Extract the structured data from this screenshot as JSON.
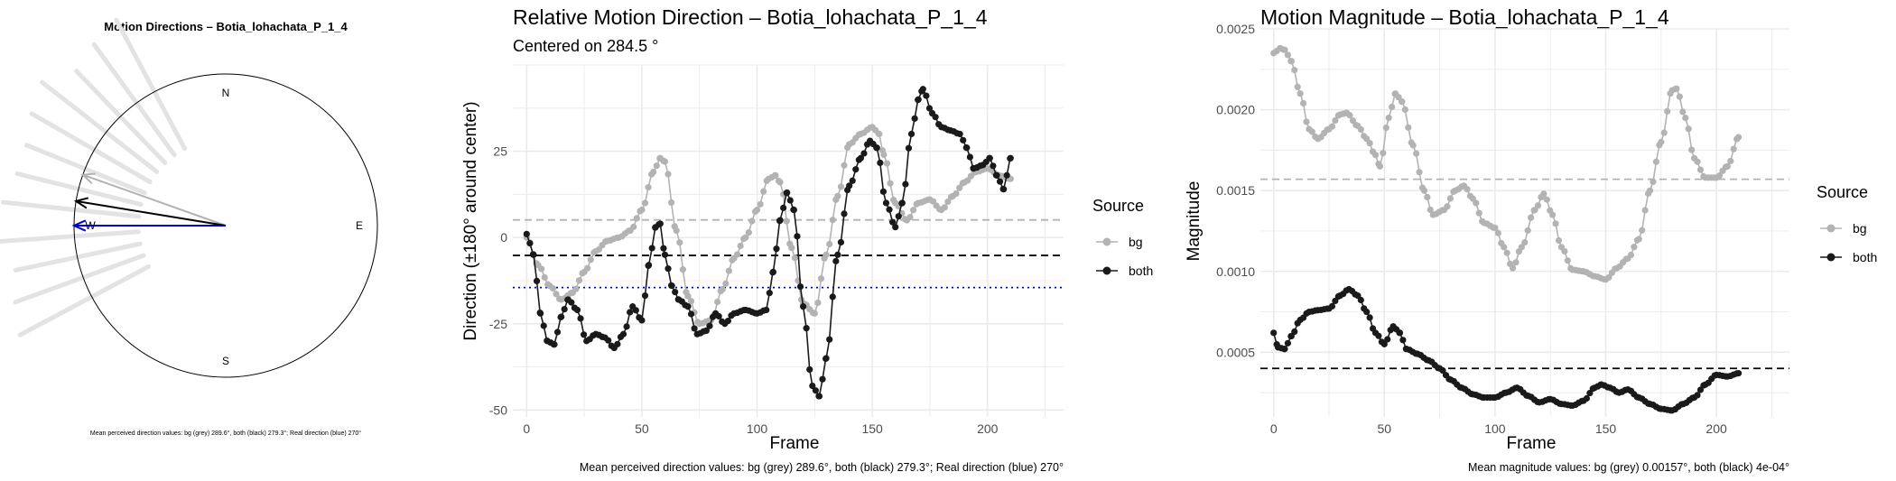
{
  "panels": {
    "compass": {
      "title": "Motion Directions – Botia_lohachata_P_1_4",
      "labels": {
        "n": "N",
        "e": "E",
        "s": "S",
        "w": "W"
      },
      "caption": "Mean perceived direction values: bg (grey) 289.6°, both (black) 279.3°; Real direction (blue) 270°"
    },
    "relative": {
      "title": "Relative Motion Direction – Botia_lohachata_P_1_4",
      "subtitle": "Centered on  284.5 °",
      "caption": "Mean perceived direction values: bg (grey) 289.6°, both (black) 279.3°; Real direction (blue) 270°"
    },
    "magnitude": {
      "title": "Motion Magnitude – Botia_lohachata_P_1_4",
      "caption": "Mean magnitude values: bg (grey) 0.00157°, both (black) 4e-04°"
    }
  },
  "colors": {
    "bg": "#b3b3b3",
    "both": "#1a1a1a",
    "real": "#0000cc",
    "grid": "#ebebeb"
  },
  "chart_data": [
    {
      "type": "polar",
      "title": "Motion Directions – Botia_lohachata_P_1_4",
      "directions": [
        {
          "name": "bg",
          "angle_deg": 289.6,
          "color": "#b3b3b3"
        },
        {
          "name": "both",
          "angle_deg": 279.3,
          "color": "#000000"
        },
        {
          "name": "real",
          "angle_deg": 270,
          "color": "#0000cc"
        }
      ]
    },
    {
      "type": "line",
      "title": "Relative Motion Direction – Botia_lohachata_P_1_4",
      "xlabel": "Frame",
      "ylabel": "Direction (±180° around center)",
      "xlim": [
        -6,
        233
      ],
      "ylim": [
        -52,
        50
      ],
      "xticks": [
        0,
        50,
        100,
        150,
        200
      ],
      "yticks": [
        -50,
        -25,
        0,
        25
      ],
      "legend_title": "Source",
      "legend_position": "right",
      "hlines": [
        {
          "name": "bg",
          "y": 5.1,
          "style": "dashed",
          "color": "#b3b3b3"
        },
        {
          "name": "both",
          "y": -5.2,
          "style": "dashed",
          "color": "#000000"
        },
        {
          "name": "real",
          "y": -14.5,
          "style": "dotted",
          "color": "#0000cc"
        }
      ],
      "series": [
        {
          "name": "bg",
          "color": "#b3b3b3",
          "points": [
            [
              0,
              0
            ],
            [
              5,
              -8
            ],
            [
              10,
              -14
            ],
            [
              15,
              -18
            ],
            [
              20,
              -16
            ],
            [
              25,
              -10
            ],
            [
              30,
              -4
            ],
            [
              35,
              -1
            ],
            [
              40,
              0
            ],
            [
              45,
              2
            ],
            [
              50,
              8
            ],
            [
              55,
              19
            ],
            [
              58,
              23
            ],
            [
              60,
              22
            ],
            [
              65,
              2
            ],
            [
              70,
              -17
            ],
            [
              75,
              -25
            ],
            [
              80,
              -24
            ],
            [
              85,
              -15
            ],
            [
              90,
              -6
            ],
            [
              95,
              0
            ],
            [
              100,
              8
            ],
            [
              105,
              17
            ],
            [
              108,
              18
            ],
            [
              110,
              16
            ],
            [
              115,
              -3
            ],
            [
              120,
              -19
            ],
            [
              125,
              -22
            ],
            [
              130,
              -5
            ],
            [
              135,
              12
            ],
            [
              140,
              27
            ],
            [
              145,
              30
            ],
            [
              150,
              32
            ],
            [
              153,
              30
            ],
            [
              155,
              24
            ],
            [
              160,
              10
            ],
            [
              165,
              5
            ],
            [
              170,
              10
            ],
            [
              175,
              11
            ],
            [
              180,
              8
            ],
            [
              185,
              12
            ],
            [
              190,
              16
            ],
            [
              195,
              19
            ],
            [
              200,
              20
            ],
            [
              205,
              18
            ],
            [
              210,
              17
            ]
          ]
        },
        {
          "name": "both",
          "color": "#1a1a1a",
          "points": [
            [
              0,
              1
            ],
            [
              3,
              -5
            ],
            [
              6,
              -22
            ],
            [
              9,
              -30
            ],
            [
              12,
              -31
            ],
            [
              15,
              -23
            ],
            [
              18,
              -18
            ],
            [
              22,
              -21
            ],
            [
              26,
              -30
            ],
            [
              30,
              -28
            ],
            [
              34,
              -29
            ],
            [
              38,
              -32
            ],
            [
              42,
              -28
            ],
            [
              46,
              -20
            ],
            [
              50,
              -24
            ],
            [
              53,
              -8
            ],
            [
              56,
              3
            ],
            [
              58,
              4
            ],
            [
              60,
              -5
            ],
            [
              63,
              -14
            ],
            [
              66,
              -18
            ],
            [
              70,
              -20
            ],
            [
              74,
              -28
            ],
            [
              78,
              -27
            ],
            [
              82,
              -22
            ],
            [
              86,
              -25
            ],
            [
              90,
              -22
            ],
            [
              95,
              -21
            ],
            [
              100,
              -22
            ],
            [
              104,
              -21
            ],
            [
              107,
              -10
            ],
            [
              110,
              5
            ],
            [
              113,
              13
            ],
            [
              116,
              8
            ],
            [
              120,
              -20
            ],
            [
              124,
              -43
            ],
            [
              127,
              -46
            ],
            [
              130,
              -35
            ],
            [
              135,
              -5
            ],
            [
              140,
              15
            ],
            [
              145,
              23
            ],
            [
              149,
              28
            ],
            [
              152,
              26
            ],
            [
              156,
              10
            ],
            [
              160,
              3
            ],
            [
              163,
              10
            ],
            [
              167,
              30
            ],
            [
              170,
              40
            ],
            [
              172,
              43
            ],
            [
              176,
              36
            ],
            [
              180,
              32
            ],
            [
              184,
              31
            ],
            [
              188,
              30
            ],
            [
              191,
              26
            ],
            [
              194,
              20
            ],
            [
              198,
              21
            ],
            [
              201,
              23
            ],
            [
              204,
              18
            ],
            [
              207,
              14
            ],
            [
              210,
              23
            ]
          ]
        }
      ]
    },
    {
      "type": "line",
      "title": "Motion Magnitude – Botia_lohachata_P_1_4",
      "xlabel": "Frame",
      "ylabel": "Magnitude",
      "xlim": [
        -6,
        233
      ],
      "ylim": [
        0.0001,
        0.0025
      ],
      "xticks": [
        0,
        50,
        100,
        150,
        200
      ],
      "yticks": [
        0.0005,
        0.001,
        0.0015,
        0.002,
        0.0025
      ],
      "ytick_labels": [
        "0.0005",
        "0.0010",
        "0.0015",
        "0.0020",
        "0.0025"
      ],
      "legend_title": "Source",
      "legend_position": "right",
      "hlines": [
        {
          "name": "bg",
          "y": 0.00157,
          "style": "dashed",
          "color": "#b3b3b3"
        },
        {
          "name": "both",
          "y": 0.0004,
          "style": "dashed",
          "color": "#000000"
        }
      ],
      "series": [
        {
          "name": "bg",
          "color": "#b3b3b3",
          "points": [
            [
              0,
              0.00235
            ],
            [
              3,
              0.00238
            ],
            [
              5,
              0.00237
            ],
            [
              8,
              0.0023
            ],
            [
              12,
              0.0021
            ],
            [
              16,
              0.00188
            ],
            [
              20,
              0.00182
            ],
            [
              25,
              0.00188
            ],
            [
              30,
              0.00197
            ],
            [
              33,
              0.00198
            ],
            [
              38,
              0.0019
            ],
            [
              42,
              0.00182
            ],
            [
              46,
              0.00172
            ],
            [
              48,
              0.00165
            ],
            [
              52,
              0.00195
            ],
            [
              55,
              0.0021
            ],
            [
              58,
              0.00205
            ],
            [
              63,
              0.00178
            ],
            [
              68,
              0.0015
            ],
            [
              72,
              0.00135
            ],
            [
              77,
              0.00138
            ],
            [
              82,
              0.0015
            ],
            [
              86,
              0.00153
            ],
            [
              90,
              0.00145
            ],
            [
              95,
              0.0013
            ],
            [
              100,
              0.00127
            ],
            [
              104,
              0.00115
            ],
            [
              108,
              0.00102
            ],
            [
              112,
              0.00115
            ],
            [
              118,
              0.00138
            ],
            [
              122,
              0.00148
            ],
            [
              126,
              0.00135
            ],
            [
              130,
              0.00115
            ],
            [
              135,
              0.00101
            ],
            [
              140,
              0.001
            ],
            [
              145,
              0.00097
            ],
            [
              150,
              0.00095
            ],
            [
              155,
              0.00102
            ],
            [
              160,
              0.00108
            ],
            [
              165,
              0.0012
            ],
            [
              170,
              0.0015
            ],
            [
              175,
              0.0018
            ],
            [
              180,
              0.00212
            ],
            [
              182,
              0.00213
            ],
            [
              186,
              0.00195
            ],
            [
              190,
              0.0017
            ],
            [
              195,
              0.00158
            ],
            [
              200,
              0.00158
            ],
            [
              205,
              0.00165
            ],
            [
              210,
              0.00183
            ]
          ]
        },
        {
          "name": "both",
          "color": "#1a1a1a",
          "points": [
            [
              0,
              0.00062
            ],
            [
              2,
              0.00053
            ],
            [
              5,
              0.00052
            ],
            [
              8,
              0.0006
            ],
            [
              12,
              0.0007
            ],
            [
              16,
              0.00075
            ],
            [
              20,
              0.00076
            ],
            [
              25,
              0.00077
            ],
            [
              30,
              0.00085
            ],
            [
              34,
              0.00089
            ],
            [
              38,
              0.00085
            ],
            [
              42,
              0.00075
            ],
            [
              46,
              0.00062
            ],
            [
              50,
              0.00055
            ],
            [
              54,
              0.00066
            ],
            [
              57,
              0.00062
            ],
            [
              60,
              0.00052
            ],
            [
              65,
              0.00049
            ],
            [
              70,
              0.00045
            ],
            [
              75,
              0.0004
            ],
            [
              80,
              0.00033
            ],
            [
              85,
              0.00028
            ],
            [
              90,
              0.00024
            ],
            [
              95,
              0.00022
            ],
            [
              100,
              0.00022
            ],
            [
              105,
              0.00025
            ],
            [
              110,
              0.00028
            ],
            [
              115,
              0.00023
            ],
            [
              120,
              0.00019
            ],
            [
              125,
              0.00021
            ],
            [
              130,
              0.00018
            ],
            [
              135,
              0.00017
            ],
            [
              140,
              0.0002
            ],
            [
              145,
              0.00028
            ],
            [
              148,
              0.0003
            ],
            [
              152,
              0.00028
            ],
            [
              156,
              0.00025
            ],
            [
              160,
              0.00027
            ],
            [
              165,
              0.00022
            ],
            [
              170,
              0.00018
            ],
            [
              175,
              0.00015
            ],
            [
              180,
              0.00014
            ],
            [
              185,
              0.00018
            ],
            [
              190,
              0.00022
            ],
            [
              195,
              0.0003
            ],
            [
              200,
              0.00036
            ],
            [
              205,
              0.00035
            ],
            [
              210,
              0.00037
            ]
          ]
        }
      ]
    }
  ],
  "legend": {
    "title": "Source",
    "items": [
      {
        "name": "bg"
      },
      {
        "name": "both"
      }
    ]
  }
}
